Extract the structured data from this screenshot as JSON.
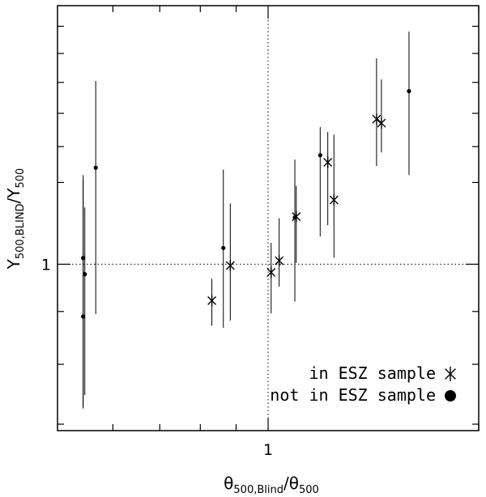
{
  "chart_data": {
    "type": "scatter",
    "x_scale": "log",
    "y_scale": "log",
    "xlim": [
      0.5,
      2.0
    ],
    "ylim": [
      0.69,
      1.78
    ],
    "x_tick_labels": [
      "1"
    ],
    "y_tick_labels": [
      "1"
    ],
    "xlabel": {
      "base": "θ",
      "sub1": "500,Blind",
      "slash": "/",
      "base2": "θ",
      "sub2": "500"
    },
    "ylabel": {
      "base": "Y",
      "sub1": "500,BLIND",
      "slash": "/",
      "base2": "Y",
      "sub2": "500"
    },
    "reference_lines": {
      "x": 1.0,
      "y": 1.0,
      "style": "dotted"
    },
    "grid": false,
    "legend": {
      "placement": "bottom-right",
      "entries": [
        {
          "label": "in  ESZ  sample",
          "marker": "asterisk"
        },
        {
          "label": "not  in  ESZ  sample",
          "marker": "dot"
        }
      ]
    },
    "series": [
      {
        "marker": "dot",
        "points": [
          {
            "x": 0.544,
            "y": 1.014,
            "y_low": 0.725,
            "y_high": 1.22
          },
          {
            "x": 0.544,
            "y": 0.89,
            "y_low": 0.728,
            "y_high": 1.206
          },
          {
            "x": 0.547,
            "y": 0.978,
            "y_low": 0.747,
            "y_high": 1.135
          },
          {
            "x": 0.567,
            "y": 1.24,
            "y_low": 0.895,
            "y_high": 1.505
          },
          {
            "x": 0.863,
            "y": 1.037,
            "y_low": 0.868,
            "y_high": 1.235
          },
          {
            "x": 1.092,
            "y": 1.11,
            "y_low": 0.92,
            "y_high": 1.263
          },
          {
            "x": 1.187,
            "y": 1.275,
            "y_low": 1.064,
            "y_high": 1.358
          },
          {
            "x": 1.59,
            "y": 1.471,
            "y_low": 1.22,
            "y_high": 1.68
          }
        ]
      },
      {
        "marker": "asterisk",
        "points": [
          {
            "x": 0.831,
            "y": 0.922,
            "y_low": 0.872,
            "y_high": 0.968
          },
          {
            "x": 0.883,
            "y": 0.997,
            "y_low": 0.882,
            "y_high": 1.145
          },
          {
            "x": 1.01,
            "y": 0.982,
            "y_low": 0.896,
            "y_high": 1.049
          },
          {
            "x": 1.037,
            "y": 1.008,
            "y_low": 0.951,
            "y_high": 1.108
          },
          {
            "x": 1.097,
            "y": 1.112,
            "y_low": 1.003,
            "y_high": 1.191
          },
          {
            "x": 1.217,
            "y": 1.255,
            "y_low": 1.091,
            "y_high": 1.343
          },
          {
            "x": 1.242,
            "y": 1.154,
            "y_low": 1.015,
            "y_high": 1.335
          },
          {
            "x": 1.429,
            "y": 1.382,
            "y_low": 1.245,
            "y_high": 1.583
          },
          {
            "x": 1.452,
            "y": 1.37,
            "y_low": 1.283,
            "y_high": 1.51
          }
        ]
      }
    ]
  }
}
